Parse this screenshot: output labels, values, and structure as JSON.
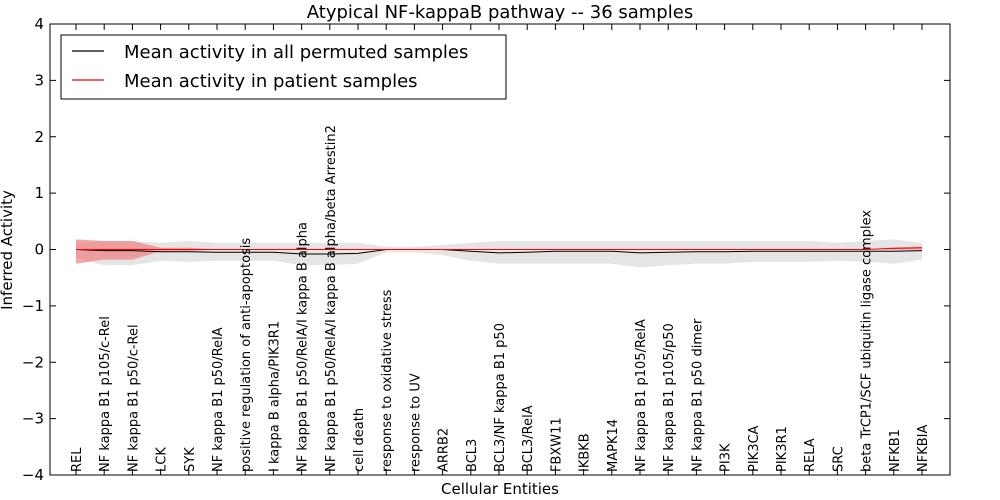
{
  "chart_data": {
    "type": "line",
    "title": "Atypical NF-kappaB pathway -- 36 samples",
    "xlabel": "Cellular Entities",
    "ylabel": "Inferred Activity",
    "ylim": [
      -4,
      4
    ],
    "yticks": [
      "−4",
      "−3",
      "−2",
      "−1",
      "0",
      "1",
      "2",
      "3",
      "4"
    ],
    "grid": false,
    "legend_position": "top-left",
    "categories": [
      "REL",
      "NF kappa B1 p105/c-Rel",
      "NF kappa B1 p50/c-Rel",
      "LCK",
      "SYK",
      "NF kappa B1 p50/RelA",
      "positive regulation of anti-apoptosis",
      "I kappa B alpha/PIK3R1",
      "NF kappa B1 p50/RelA/I kappa B alpha",
      "NF kappa B1 p50/RelA/I kappa B alpha/beta Arrestin2",
      "cell death",
      "response to oxidative stress",
      "response to UV",
      "ARRB2",
      "BCL3",
      "BCL3/NF kappa B1 p50",
      "BCL3/RelA",
      "FBXW11",
      "IKBKB",
      "MAPK14",
      "NF kappa B1 p105/RelA",
      "NF kappa B1 p105/p50",
      "NF kappa B1 p50 dimer",
      "PI3K",
      "PIK3CA",
      "PIK3R1",
      "RELA",
      "SRC",
      "beta TrCP1/SCF ubiquitin ligase complex",
      "NFKB1",
      "NFKBIA"
    ],
    "series": [
      {
        "name": "Mean activity in all permuted samples",
        "color": "#000000",
        "band_color": "#d3d3d3",
        "values": [
          0.0,
          -0.02,
          -0.02,
          -0.04,
          -0.04,
          -0.05,
          -0.05,
          -0.05,
          -0.08,
          -0.08,
          -0.07,
          0.0,
          0.0,
          0.0,
          -0.03,
          -0.06,
          -0.05,
          -0.03,
          -0.03,
          -0.03,
          -0.06,
          -0.05,
          -0.04,
          -0.04,
          -0.03,
          -0.03,
          -0.03,
          -0.03,
          -0.03,
          -0.03,
          -0.02
        ],
        "band_upper": [
          0.12,
          0.15,
          0.15,
          0.12,
          0.15,
          0.12,
          0.12,
          0.12,
          0.12,
          0.12,
          0.12,
          0.05,
          0.05,
          0.08,
          0.12,
          0.15,
          0.15,
          0.15,
          0.15,
          0.15,
          0.15,
          0.15,
          0.15,
          0.15,
          0.15,
          0.15,
          0.15,
          0.12,
          0.15,
          0.18,
          0.12
        ],
        "band_lower": [
          -0.15,
          -0.28,
          -0.28,
          -0.2,
          -0.22,
          -0.2,
          -0.2,
          -0.2,
          -0.28,
          -0.28,
          -0.25,
          -0.05,
          -0.05,
          -0.1,
          -0.2,
          -0.25,
          -0.25,
          -0.25,
          -0.25,
          -0.25,
          -0.32,
          -0.28,
          -0.25,
          -0.25,
          -0.22,
          -0.22,
          -0.22,
          -0.2,
          -0.22,
          -0.25,
          -0.18
        ]
      },
      {
        "name": "Mean activity in patient samples",
        "color": "#ff0000",
        "band_color": "#f08080",
        "values": [
          0.0,
          0.0,
          0.0,
          0.0,
          0.0,
          0.0,
          0.0,
          0.0,
          0.0,
          0.0,
          0.0,
          0.0,
          0.0,
          0.0,
          0.0,
          0.0,
          0.0,
          0.0,
          0.0,
          0.0,
          0.0,
          0.0,
          0.0,
          0.0,
          0.0,
          0.0,
          0.0,
          0.0,
          0.0,
          0.02,
          0.03
        ],
        "band_upper": [
          0.18,
          0.15,
          0.15,
          0.03,
          0.03,
          0.0,
          0.0,
          0.0,
          0.0,
          0.0,
          0.0,
          0.0,
          0.0,
          0.0,
          0.0,
          0.0,
          0.0,
          0.0,
          0.0,
          0.0,
          0.0,
          0.0,
          0.0,
          0.0,
          0.0,
          0.0,
          0.0,
          0.0,
          0.0,
          0.04,
          0.05
        ],
        "band_lower": [
          -0.25,
          -0.18,
          -0.18,
          -0.03,
          -0.03,
          0.0,
          0.0,
          0.0,
          0.0,
          0.0,
          0.0,
          0.0,
          0.0,
          0.0,
          0.0,
          0.0,
          0.0,
          0.0,
          0.0,
          0.0,
          0.0,
          0.0,
          0.0,
          0.0,
          0.0,
          0.0,
          0.0,
          0.0,
          0.0,
          0.0,
          0.0
        ]
      }
    ]
  }
}
